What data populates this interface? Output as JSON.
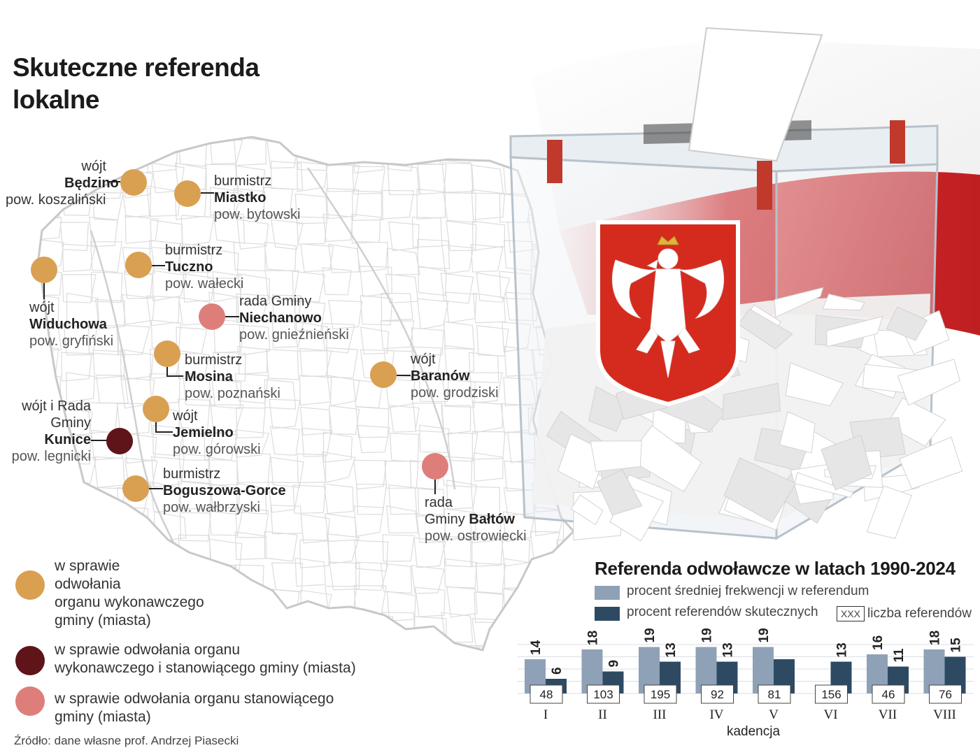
{
  "title_line1": "Skuteczne referenda",
  "title_line2": "lokalne",
  "colors": {
    "executive": "#d9a052",
    "both": "#5e1418",
    "council": "#de7e7a",
    "turnout_bar": "#8fa1b6",
    "success_bar": "#2e4a63"
  },
  "places": [
    {
      "role": "wójt",
      "name": "Będzino",
      "county": "pow. koszaliński",
      "type": "executive"
    },
    {
      "role": "burmistrz",
      "name": "Miastko",
      "county": "pow. bytowski",
      "type": "executive"
    },
    {
      "role": "burmistrz",
      "name": "Tuczno",
      "county": "pow. wałecki",
      "type": "executive"
    },
    {
      "role": "wójt",
      "name": "Widuchowa",
      "county": "pow. gryfiński",
      "type": "executive"
    },
    {
      "role": "rada Gminy",
      "name": "Niechanowo",
      "county": "pow. gnieźnieński",
      "type": "council"
    },
    {
      "role": "burmistrz",
      "name": "Mosina",
      "county": "pow. poznański",
      "type": "executive"
    },
    {
      "role": "wójt",
      "name": "Baranów",
      "county": "pow. grodziski",
      "type": "executive"
    },
    {
      "role": "wójt i Rada",
      "role2": "Gminy",
      "name": "Kunice",
      "county": "pow. legnicki",
      "type": "both"
    },
    {
      "role": "wójt",
      "name": "Jemielno",
      "county": "pow. górowski",
      "type": "executive"
    },
    {
      "role": "burmistrz",
      "name": "Boguszowa-Gorce",
      "county": "pow. wałbrzyski",
      "type": "executive"
    },
    {
      "role": "rada",
      "role2": "Gminy",
      "name": "Bałtów",
      "county": "pow. ostrowiecki",
      "type": "council"
    }
  ],
  "legend": [
    {
      "text_lines": [
        "w sprawie",
        "odwołania",
        "organu wykonawczego",
        "gminy (miasta)"
      ],
      "type": "executive"
    },
    {
      "text_lines": [
        "w sprawie odwołania organu",
        "wykonawczego i stanowiącego gminy (miasta)"
      ],
      "type": "both"
    },
    {
      "text_lines": [
        "w sprawie odwołania organu stanowiącego",
        "gminy (miasta)"
      ],
      "type": "council"
    }
  ],
  "source": "Źródło: dane własne prof. Andrzej Piasecki",
  "chart_data": {
    "type": "bar",
    "title": "Referenda odwoławcze w latach 1990-2024",
    "legend": [
      "procent średniej frekwencji w referendum",
      "procent referendów skutecznych",
      "liczba referendów"
    ],
    "count_key_sample": "XXX",
    "categories": [
      "I",
      "II",
      "III",
      "IV",
      "V",
      "VI",
      "VII",
      "VIII"
    ],
    "xlabel": "kadencja",
    "series": [
      {
        "name": "procent średniej frekwencji w referendum",
        "values": [
          14,
          18,
          19,
          19,
          19,
          null,
          16,
          18
        ],
        "labels": [
          "14",
          "18",
          "19",
          "19",
          "19",
          "-",
          "16",
          "18"
        ]
      },
      {
        "name": "procent referendów skutecznych",
        "values": [
          6,
          9,
          13,
          13,
          null,
          13,
          11,
          15
        ],
        "labels": [
          "6",
          "9",
          "13",
          "13",
          "",
          "13",
          "11",
          "15"
        ]
      }
    ],
    "counts": [
      48,
      103,
      195,
      92,
      81,
      156,
      46,
      76
    ],
    "ylim": [
      0,
      20
    ]
  }
}
